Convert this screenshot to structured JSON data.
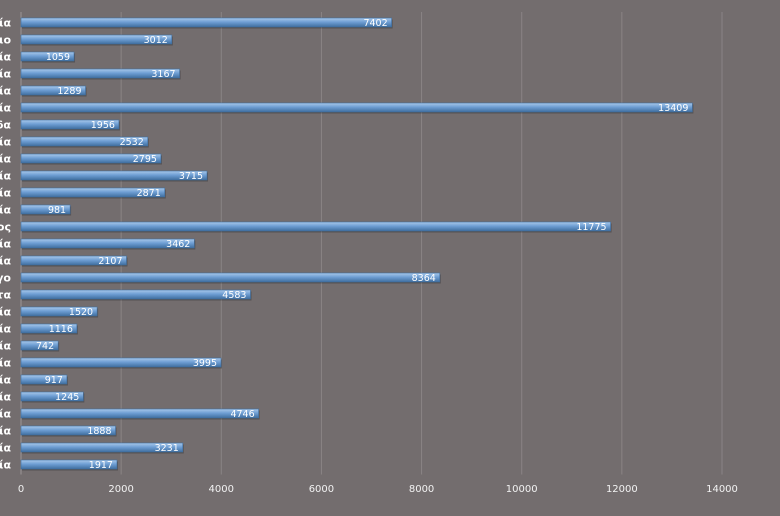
{
  "chart_data": {
    "type": "bar",
    "orientation": "horizontal",
    "categories": [
      "ία",
      "ιο",
      "ία",
      "ία",
      "ία",
      "ία",
      "δα",
      "ία",
      "ία",
      "ία",
      "ία",
      "ία",
      "ος",
      "ία",
      "ία",
      "γο",
      "τα",
      "ία",
      "ία",
      "ία",
      "ία",
      "ία",
      "ία",
      "ία",
      "ία",
      "ία",
      "ία"
    ],
    "values": [
      7402,
      3012,
      1059,
      3167,
      1289,
      13409,
      1956,
      2532,
      2795,
      3715,
      2871,
      981,
      11775,
      3462,
      2107,
      8364,
      4583,
      1520,
      1116,
      742,
      3995,
      917,
      1245,
      4746,
      1888,
      3231,
      1917
    ],
    "xlim": [
      0,
      14000
    ],
    "xticks": [
      0,
      2000,
      4000,
      6000,
      8000,
      10000,
      12000,
      14000
    ],
    "grid": true,
    "colors": {
      "background": "#736d6e",
      "bar_light": "#a9c8ea",
      "bar": "#6f9fd4",
      "bar_dark": "#3f6e9f"
    }
  }
}
